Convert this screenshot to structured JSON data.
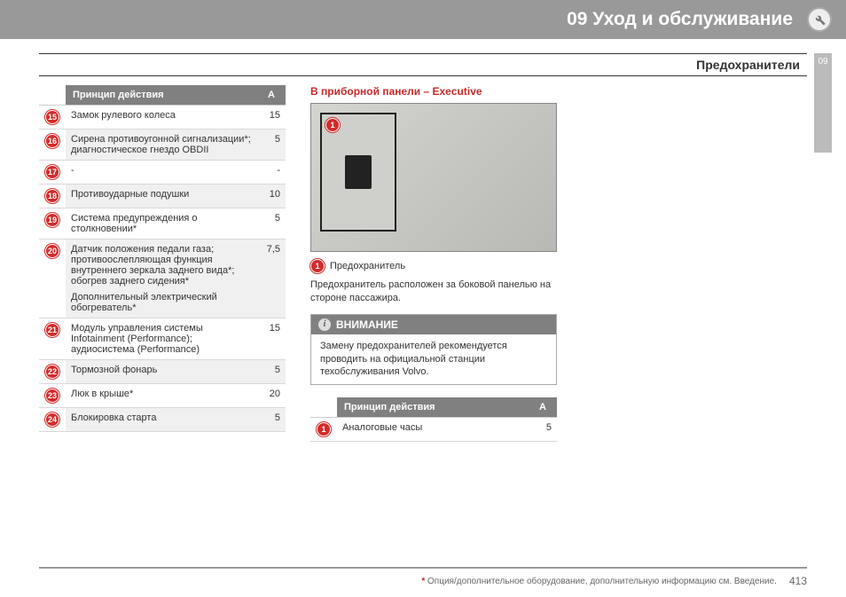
{
  "header": {
    "chapter_title": "09 Уход и обслуживание",
    "section_title": "Предохранители",
    "side_tab": "09",
    "background_color": "#999999",
    "text_color": "#ffffff"
  },
  "left_table": {
    "header_bg": "#808080",
    "header_color": "#ffffff",
    "row_alt_bg": "#f0f0f0",
    "border_color": "#d8d8d8",
    "col_principle": "Принцип действия",
    "col_a": "A",
    "badge_color": "#d32b2b",
    "badge_text_color": "#ffffff",
    "rows": [
      {
        "n": "15",
        "text": "Замок рулевого колеса",
        "val": "15",
        "alt": false
      },
      {
        "n": "16",
        "text": "Сирена противоугонной сигнализации*; диагностическое гнездо OBDII",
        "val": "5",
        "alt": true
      },
      {
        "n": "17",
        "text": "-",
        "val": "-",
        "alt": false
      },
      {
        "n": "18",
        "text": "Противоударные подушки",
        "val": "10",
        "alt": true
      },
      {
        "n": "19",
        "text": "Система предупреждения о столкновении*",
        "val": "5",
        "alt": false
      },
      {
        "n": "20",
        "text": "Датчик положения педали газа; противоослепляющая функция внутреннего зеркала заднего вида*; обогрев заднего сидения*",
        "text2": "Дополнительный электрический обогреватель*",
        "val": "7,5",
        "alt": true
      },
      {
        "n": "21",
        "text": "Модуль управления системы Infotainment (Performance); аудиосистема (Performance)",
        "val": "15",
        "alt": false
      },
      {
        "n": "22",
        "text": "Тормозной фонарь",
        "val": "5",
        "alt": true
      },
      {
        "n": "23",
        "text": "Люк в крыше*",
        "val": "20",
        "alt": false
      },
      {
        "n": "24",
        "text": "Блокировка старта",
        "val": "5",
        "alt": true
      }
    ]
  },
  "right_column": {
    "heading": "В приборной панели – Executive",
    "heading_color": "#c62a2a",
    "diagram_marker": "1",
    "legend_label": "Предохранитель",
    "description": "Предохранитель расположен за боковой панелью на стороне пассажира.",
    "note": {
      "title": "ВНИМАНИЕ",
      "body": "Замену предохранителей рекомендуется проводить на официальной станции техобслуживания Volvo.",
      "header_bg": "#808080",
      "header_color": "#ffffff"
    },
    "table": {
      "col_principle": "Принцип действия",
      "col_a": "A",
      "rows": [
        {
          "n": "1",
          "text": "Аналоговые часы",
          "val": "5",
          "alt": false
        }
      ]
    }
  },
  "footer": {
    "note": "Опция/дополнительное оборудование, дополнительную информацию см. Введение.",
    "star_color": "#c62a2a",
    "page_number": "413"
  }
}
